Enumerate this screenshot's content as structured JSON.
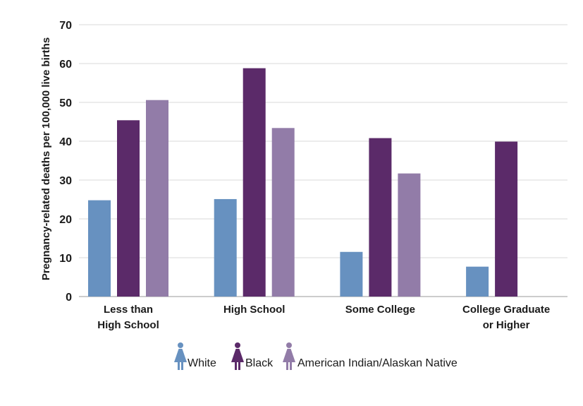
{
  "chart_data": {
    "type": "bar",
    "title": "",
    "xlabel": "",
    "ylabel": "Pregnancy-related deaths per 100,000 live births",
    "ylim": [
      0,
      70
    ],
    "yticks": [
      "0",
      "10",
      "20",
      "30",
      "40",
      "50",
      "60",
      "70"
    ],
    "grid": true,
    "legend_position": "bottom",
    "categories": [
      [
        "Less than",
        "High School"
      ],
      [
        "High School"
      ],
      [
        "Some College"
      ],
      [
        "College Graduate",
        "or Higher"
      ]
    ],
    "series": [
      {
        "name": "White",
        "color": "#6791c0",
        "values": [
          24.8,
          25.1,
          11.5,
          7.7
        ]
      },
      {
        "name": "Black",
        "color": "#5b2a69",
        "values": [
          45.4,
          58.8,
          40.8,
          39.9
        ]
      },
      {
        "name": "American Indian/Alaskan Native",
        "color": "#927ca8",
        "values": [
          50.6,
          43.4,
          31.7,
          null
        ]
      }
    ],
    "legend_icon": "woman-figure-icon"
  }
}
